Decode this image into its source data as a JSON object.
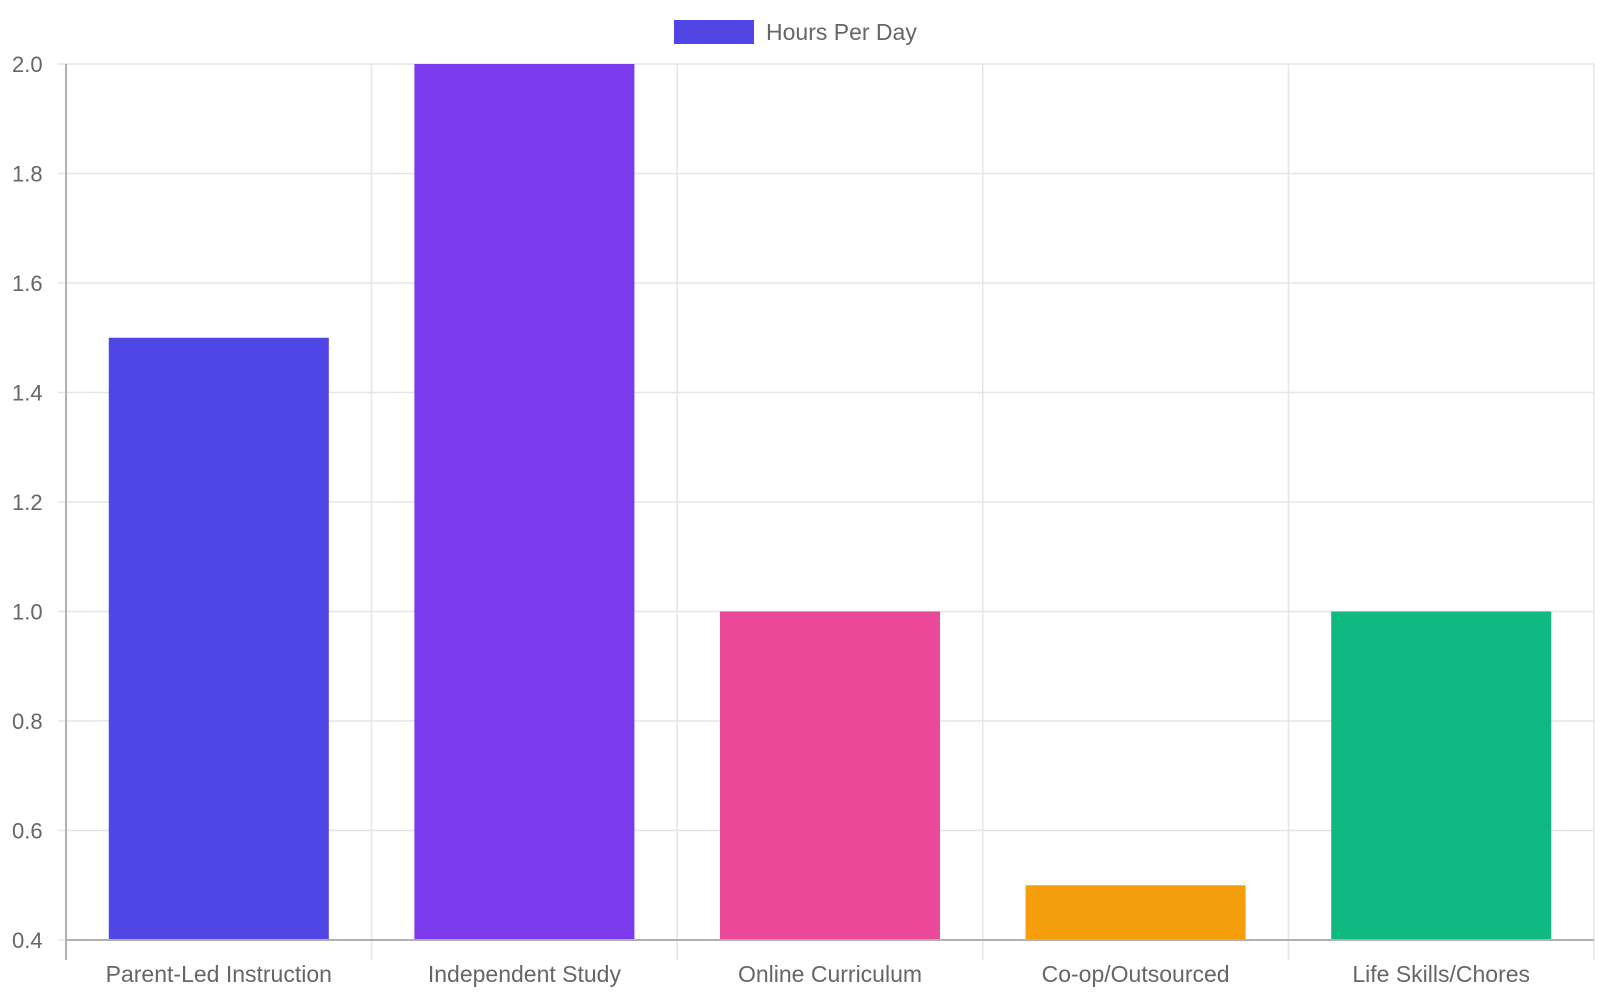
{
  "chart_data": {
    "type": "bar",
    "categories": [
      "Parent-Led Instruction",
      "Independent Study",
      "Online Curriculum",
      "Co-op/Outsourced",
      "Life Skills/Chores"
    ],
    "series": [
      {
        "name": "Hours Per Day",
        "values": [
          1.5,
          2.0,
          1.0,
          0.5,
          1.0
        ],
        "colors": [
          "#4f46e5",
          "#7c3aed",
          "#ec4899",
          "#f59e0b",
          "#10b981"
        ]
      }
    ],
    "ylim": [
      0.4,
      2.0
    ],
    "yticks": [
      "0.4",
      "0.6",
      "0.8",
      "1.0",
      "1.2",
      "1.4",
      "1.6",
      "1.8",
      "2.0"
    ],
    "legend": {
      "position": "top-center",
      "label": "Hours Per Day",
      "swatch_color": "#4f46e5"
    },
    "grid": true,
    "grid_color": "#e5e5e5",
    "axis_color": "#b0b0b0"
  }
}
